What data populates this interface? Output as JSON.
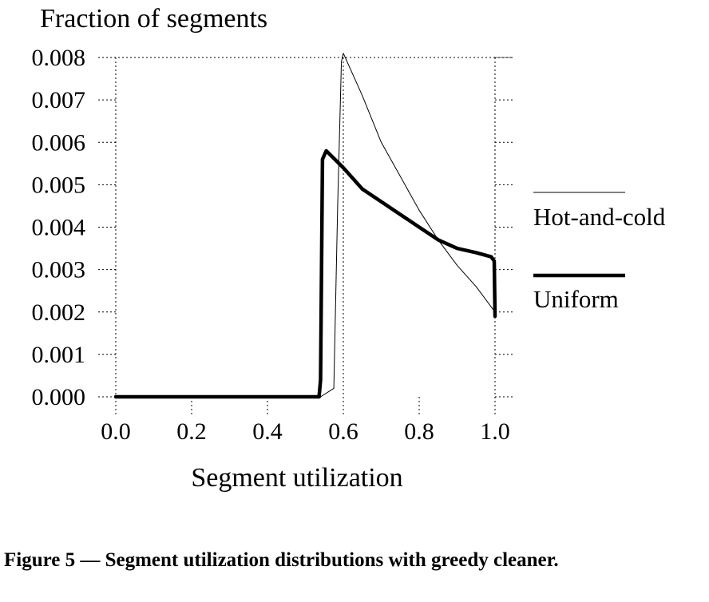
{
  "chart_data": {
    "type": "line",
    "ylabel": "Fraction of segments",
    "xlabel": "Segment utilization",
    "xlim": [
      0.0,
      1.0
    ],
    "ylim": [
      0.0,
      0.008
    ],
    "x_ticks": [
      "0.0",
      "0.2",
      "0.4",
      "0.6",
      "0.8",
      "1.0"
    ],
    "y_ticks": [
      "0.000",
      "0.001",
      "0.002",
      "0.003",
      "0.004",
      "0.005",
      "0.006",
      "0.007",
      "0.008"
    ],
    "grid": "dotted, at x = 0.0, 0.6, 1.0 and y = 0.008",
    "legend_position": "right",
    "series": [
      {
        "name": "Hot-and-cold",
        "line_style": "thin",
        "x": [
          0.0,
          0.54,
          0.575,
          0.585,
          0.595,
          0.6,
          0.65,
          0.7,
          0.75,
          0.8,
          0.85,
          0.9,
          0.95,
          1.0
        ],
        "y": [
          0.0,
          0.0,
          0.0002,
          0.0045,
          0.0079,
          0.0081,
          0.0071,
          0.006,
          0.0052,
          0.0044,
          0.0037,
          0.0031,
          0.0026,
          0.002
        ]
      },
      {
        "name": "Uniform",
        "line_style": "thick",
        "x": [
          0.0,
          0.536,
          0.54,
          0.545,
          0.555,
          0.6,
          0.65,
          0.7,
          0.75,
          0.8,
          0.85,
          0.9,
          0.95,
          0.99,
          0.998,
          1.0
        ],
        "y": [
          0.0,
          0.0,
          0.0004,
          0.0056,
          0.0058,
          0.0054,
          0.0049,
          0.0046,
          0.0043,
          0.004,
          0.0037,
          0.0035,
          0.0034,
          0.0033,
          0.0032,
          0.0019
        ]
      }
    ]
  },
  "caption": "Figure 5 — Segment utilization distributions with greedy cleaner."
}
